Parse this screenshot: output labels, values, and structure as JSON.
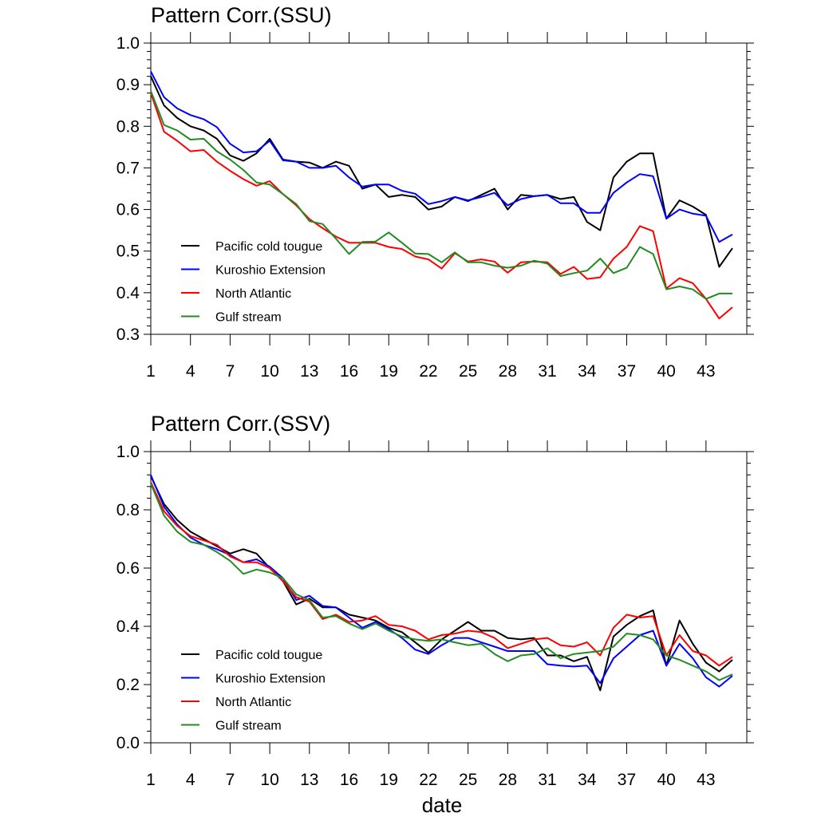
{
  "chart_data": [
    {
      "type": "line",
      "title": "Pattern Corr.(SSU)",
      "xlabel": "",
      "ylabel": "",
      "xlim": [
        1,
        45
      ],
      "ylim": [
        0.3,
        1.0
      ],
      "x_tick_labels": [
        "1",
        "4",
        "7",
        "10",
        "13",
        "16",
        "19",
        "22",
        "25",
        "28",
        "31",
        "34",
        "37",
        "40",
        "43"
      ],
      "y_tick_labels": [
        "0.3",
        "0.4",
        "0.5",
        "0.6",
        "0.7",
        "0.8",
        "0.9",
        "1.0"
      ],
      "legend_position": "lower-left",
      "series": [
        {
          "name": "Pacific cold tougue",
          "color": "#000000",
          "values": [
            0.92,
            0.85,
            0.82,
            0.8,
            0.79,
            0.77,
            0.73,
            0.717,
            0.735,
            0.77,
            0.72,
            0.715,
            0.713,
            0.7,
            0.715,
            0.705,
            0.65,
            0.66,
            0.63,
            0.635,
            0.63,
            0.6,
            0.607,
            0.63,
            0.62,
            0.635,
            0.65,
            0.6,
            0.635,
            0.632,
            0.635,
            0.625,
            0.63,
            0.57,
            0.55,
            0.677,
            0.715,
            0.735,
            0.735,
            0.578,
            0.622,
            0.607,
            0.587,
            0.462,
            0.507
          ]
        },
        {
          "name": "Kuroshio Extension",
          "color": "#0000ff",
          "values": [
            0.932,
            0.87,
            0.843,
            0.827,
            0.817,
            0.798,
            0.758,
            0.737,
            0.74,
            0.765,
            0.718,
            0.715,
            0.7,
            0.7,
            0.705,
            0.677,
            0.655,
            0.66,
            0.66,
            0.645,
            0.638,
            0.613,
            0.62,
            0.63,
            0.622,
            0.63,
            0.64,
            0.61,
            0.625,
            0.632,
            0.635,
            0.615,
            0.615,
            0.592,
            0.592,
            0.64,
            0.665,
            0.685,
            0.68,
            0.578,
            0.6,
            0.59,
            0.585,
            0.522,
            0.54
          ]
        },
        {
          "name": "North Atlantic",
          "color": "#ff0000",
          "values": [
            0.88,
            0.787,
            0.765,
            0.74,
            0.743,
            0.715,
            0.693,
            0.673,
            0.657,
            0.668,
            0.637,
            0.61,
            0.577,
            0.555,
            0.535,
            0.52,
            0.52,
            0.52,
            0.51,
            0.505,
            0.487,
            0.48,
            0.458,
            0.495,
            0.475,
            0.48,
            0.475,
            0.448,
            0.473,
            0.475,
            0.473,
            0.445,
            0.462,
            0.433,
            0.437,
            0.482,
            0.51,
            0.56,
            0.548,
            0.41,
            0.435,
            0.423,
            0.385,
            0.338,
            0.365
          ]
        },
        {
          "name": "Gulf stream",
          "color": "#228b22",
          "values": [
            0.885,
            0.803,
            0.79,
            0.768,
            0.77,
            0.74,
            0.72,
            0.695,
            0.665,
            0.66,
            0.637,
            0.613,
            0.572,
            0.565,
            0.53,
            0.493,
            0.522,
            0.523,
            0.545,
            0.52,
            0.494,
            0.493,
            0.473,
            0.497,
            0.473,
            0.473,
            0.465,
            0.46,
            0.465,
            0.477,
            0.47,
            0.44,
            0.447,
            0.453,
            0.482,
            0.447,
            0.46,
            0.51,
            0.493,
            0.408,
            0.415,
            0.408,
            0.385,
            0.398,
            0.398
          ]
        }
      ]
    },
    {
      "type": "line",
      "title": "Pattern Corr.(SSV)",
      "xlabel": "date",
      "ylabel": "",
      "xlim": [
        1,
        45
      ],
      "ylim": [
        0.0,
        1.0
      ],
      "x_tick_labels": [
        "1",
        "4",
        "7",
        "10",
        "13",
        "16",
        "19",
        "22",
        "25",
        "28",
        "31",
        "34",
        "37",
        "40",
        "43"
      ],
      "y_tick_labels": [
        "0.0",
        "0.2",
        "0.4",
        "0.6",
        "0.8",
        "1.0"
      ],
      "legend_position": "lower-left",
      "series": [
        {
          "name": "Pacific cold tougue",
          "color": "#000000",
          "values": [
            0.915,
            0.82,
            0.765,
            0.725,
            0.7,
            0.675,
            0.65,
            0.665,
            0.65,
            0.6,
            0.555,
            0.475,
            0.495,
            0.465,
            0.465,
            0.44,
            0.43,
            0.42,
            0.395,
            0.38,
            0.345,
            0.31,
            0.355,
            0.385,
            0.415,
            0.385,
            0.385,
            0.36,
            0.355,
            0.36,
            0.3,
            0.3,
            0.28,
            0.295,
            0.18,
            0.365,
            0.405,
            0.435,
            0.455,
            0.265,
            0.42,
            0.34,
            0.275,
            0.245,
            0.285
          ]
        },
        {
          "name": "Kuroshio Extension",
          "color": "#0000ff",
          "values": [
            0.92,
            0.81,
            0.75,
            0.705,
            0.68,
            0.665,
            0.645,
            0.62,
            0.63,
            0.605,
            0.565,
            0.49,
            0.505,
            0.47,
            0.465,
            0.43,
            0.395,
            0.415,
            0.39,
            0.36,
            0.32,
            0.305,
            0.335,
            0.36,
            0.36,
            0.345,
            0.33,
            0.315,
            0.315,
            0.315,
            0.27,
            0.265,
            0.262,
            0.265,
            0.205,
            0.29,
            0.33,
            0.37,
            0.385,
            0.265,
            0.34,
            0.29,
            0.225,
            0.193,
            0.23
          ]
        },
        {
          "name": "North Atlantic",
          "color": "#ff0000",
          "values": [
            0.895,
            0.795,
            0.745,
            0.71,
            0.695,
            0.68,
            0.64,
            0.62,
            0.62,
            0.6,
            0.555,
            0.5,
            0.485,
            0.425,
            0.44,
            0.415,
            0.42,
            0.435,
            0.405,
            0.4,
            0.385,
            0.355,
            0.37,
            0.375,
            0.385,
            0.38,
            0.36,
            0.325,
            0.34,
            0.355,
            0.36,
            0.335,
            0.33,
            0.345,
            0.3,
            0.395,
            0.44,
            0.43,
            0.435,
            0.3,
            0.37,
            0.315,
            0.3,
            0.265,
            0.295
          ]
        },
        {
          "name": "Gulf stream",
          "color": "#228b22",
          "values": [
            0.89,
            0.78,
            0.725,
            0.69,
            0.68,
            0.655,
            0.625,
            0.58,
            0.595,
            0.585,
            0.565,
            0.51,
            0.49,
            0.43,
            0.435,
            0.41,
            0.39,
            0.41,
            0.385,
            0.365,
            0.355,
            0.35,
            0.355,
            0.345,
            0.335,
            0.34,
            0.305,
            0.28,
            0.3,
            0.305,
            0.325,
            0.29,
            0.305,
            0.31,
            0.315,
            0.33,
            0.375,
            0.37,
            0.355,
            0.3,
            0.285,
            0.265,
            0.245,
            0.215,
            0.235
          ]
        }
      ]
    }
  ]
}
